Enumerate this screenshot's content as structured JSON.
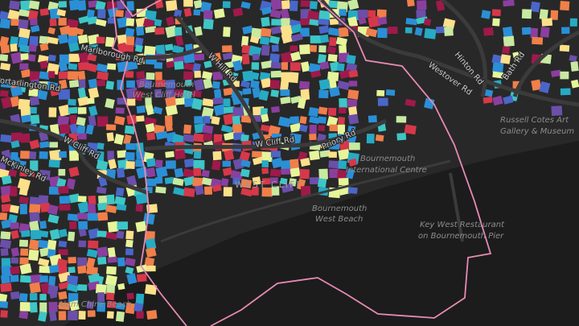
{
  "labels": {
    "marlborough": "Marlborough Rd",
    "portarlington": "Portarlington Rd",
    "wcliff_west": "W Cliff Rd",
    "mckinley": "McKinley Rd",
    "hotel_1": "Bournemouth",
    "hotel_2": "West Cliff Hotel",
    "whill": "W Hill Rd",
    "wcliff_mid": "W Cliff Rd",
    "priory": "Priory Rd",
    "bic_1": "Bournemouth",
    "bic_2": "International Centre",
    "westcliff": "WEST CLIFF",
    "beach_1": "Bournemouth",
    "beach_2": "West Beach",
    "pier_1": "Key West Restaurant",
    "pier_2": "on Bournemouth Pier",
    "museum_1": "Russell Cotes Art",
    "museum_2": "Gallery & Museum",
    "westover": "Westover Rd",
    "hinton": "Hinton Rd",
    "bath": "Bath Rd",
    "alum": "Alum Chine Beach"
  }
}
